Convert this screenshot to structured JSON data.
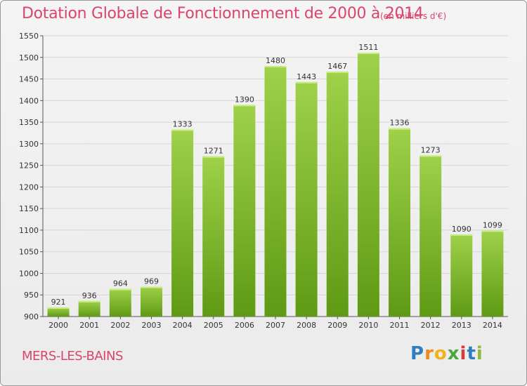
{
  "title": "Dotation Globale de Fonctionnement de 2000 à 2014",
  "subtitle": "(en milliers d'€)",
  "commune": "MERS-LES-BAINS",
  "logo": {
    "text": "Proxiti",
    "letters": [
      "P",
      "r",
      "o",
      "x",
      "i",
      "t",
      "i"
    ]
  },
  "colors": {
    "title": "#d9456b",
    "bar_top": "#9fd14a",
    "bar_bottom": "#5f9a14",
    "grid": "#d6d6d6"
  },
  "chart_data": {
    "type": "bar",
    "title": "Dotation Globale de Fonctionnement de 2000 à 2014",
    "subtitle": "(en milliers d'€)",
    "categories": [
      "2000",
      "2001",
      "2002",
      "2003",
      "2004",
      "2005",
      "2006",
      "2007",
      "2008",
      "2009",
      "2010",
      "2011",
      "2012",
      "2013",
      "2014"
    ],
    "values": [
      921,
      936,
      964,
      969,
      1333,
      1271,
      1390,
      1480,
      1443,
      1467,
      1511,
      1336,
      1273,
      1090,
      1099
    ],
    "ylim": [
      900,
      1550
    ],
    "yticks": [
      900,
      950,
      1000,
      1050,
      1100,
      1150,
      1200,
      1250,
      1300,
      1350,
      1400,
      1450,
      1500,
      1550
    ],
    "grid": true,
    "legend": "none"
  }
}
